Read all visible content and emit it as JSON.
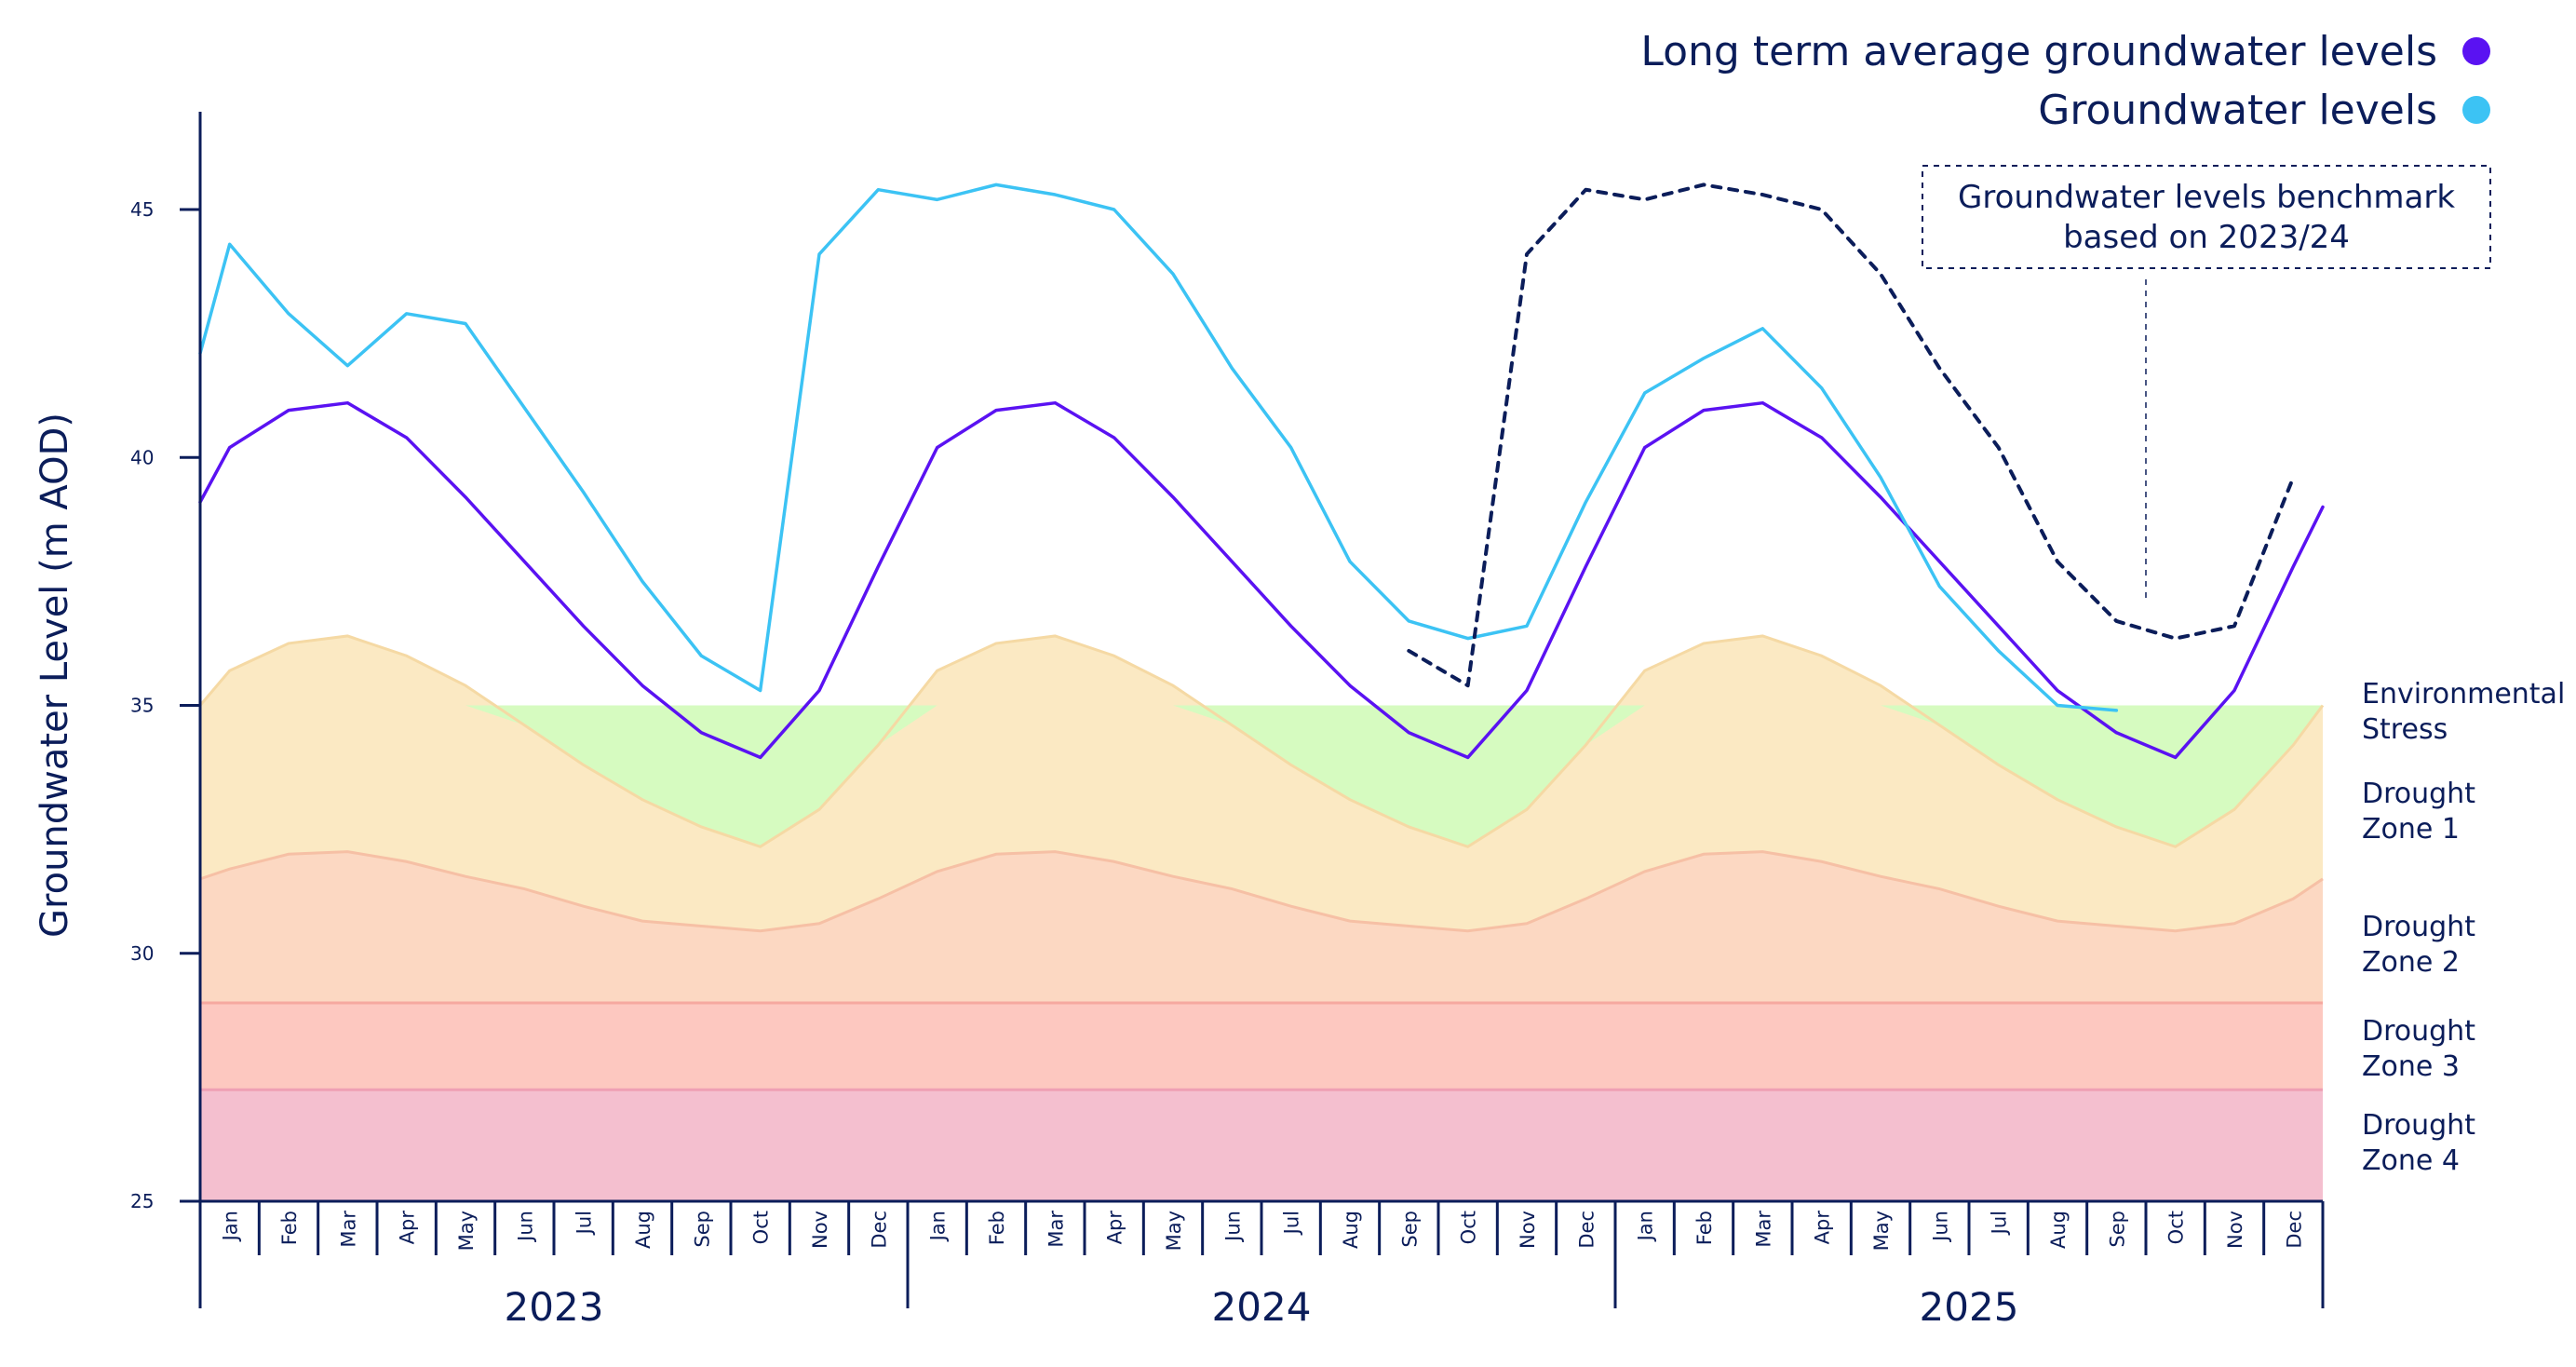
{
  "chart_data": {
    "type": "line",
    "ylabel": "Groundwater Level (m AOD)",
    "ylim": [
      25,
      47
    ],
    "yticks": [
      25,
      30,
      35,
      40,
      45
    ],
    "x_months": [
      "Jan",
      "Feb",
      "Mar",
      "Apr",
      "May",
      "Jun",
      "Jul",
      "Aug",
      "Sep",
      "Oct",
      "Nov",
      "Dec",
      "Jan",
      "Feb",
      "Mar",
      "Apr",
      "May",
      "Jun",
      "Jul",
      "Aug",
      "Sep",
      "Oct",
      "Nov",
      "Dec",
      "Jan",
      "Feb",
      "Mar",
      "Apr",
      "May",
      "Jun",
      "Jul",
      "Aug",
      "Sep",
      "Oct",
      "Nov",
      "Dec"
    ],
    "years": [
      "2023",
      "2024",
      "2025"
    ],
    "legend": [
      {
        "label": "Long term average groundwater levels",
        "color": "#5a12f2"
      },
      {
        "label": "Groundwater levels",
        "color": "#3cc3f4"
      }
    ],
    "series": [
      {
        "name": "Long term average groundwater levels",
        "color": "#5a12f2",
        "x": [
          0,
          0.5,
          1.5,
          2.5,
          3.5,
          4.5,
          5.5,
          6.5,
          7.5,
          8.5,
          9.5,
          10.5,
          11.5,
          12.5,
          13.5,
          14.5,
          15.5,
          16.5,
          17.5,
          18.5,
          19.5,
          20.5,
          21.5,
          22.5,
          23.5,
          24.5,
          25.5,
          26.5,
          27.5,
          28.5,
          29.5,
          30.5,
          31.5,
          32.5,
          33.5,
          34.5,
          35.5,
          36.0
        ],
        "y": [
          39.1,
          40.2,
          40.95,
          41.1,
          40.4,
          39.2,
          37.9,
          36.6,
          35.4,
          34.45,
          33.95,
          35.3,
          37.8,
          40.2,
          40.95,
          41.1,
          40.4,
          39.2,
          37.9,
          36.6,
          35.4,
          34.45,
          33.95,
          35.3,
          37.8,
          40.2,
          40.95,
          41.1,
          40.4,
          39.2,
          37.9,
          36.6,
          35.3,
          34.45,
          33.95,
          35.3,
          37.8,
          39.0
        ]
      },
      {
        "name": "Groundwater levels",
        "color": "#3cc3f4",
        "x": [
          0,
          0.5,
          1.5,
          2.5,
          3.5,
          4.5,
          5.5,
          6.5,
          7.5,
          8.5,
          9.5,
          10.5,
          11.5,
          12.5,
          13.5,
          14.5,
          15.5,
          16.5,
          17.5,
          18.5,
          19.5,
          20.5,
          21.5,
          22.5,
          23.5,
          24.5,
          25.5,
          26.5,
          27.5,
          28.5,
          29.5,
          30.5,
          31.5,
          32.5
        ],
        "y": [
          42.1,
          44.3,
          42.9,
          41.85,
          42.9,
          42.7,
          41.0,
          39.3,
          37.5,
          36.0,
          35.3,
          44.1,
          45.4,
          45.2,
          45.5,
          45.3,
          45.0,
          43.7,
          41.8,
          40.2,
          37.9,
          36.7,
          36.35,
          36.6,
          39.1,
          41.3,
          42.0,
          42.6,
          41.4,
          39.6,
          37.4,
          36.1,
          35.0,
          34.9
        ]
      },
      {
        "name": "Groundwater levels benchmark",
        "color": "#0b1d5a",
        "dashed": true,
        "x": [
          20.5,
          21.5,
          22.5,
          23.5,
          24.5,
          25.5,
          26.5,
          27.5,
          28.5,
          29.5,
          30.5,
          31.5,
          32.5,
          33.5,
          34.5,
          35.5
        ],
        "y": [
          36.1,
          35.4,
          44.1,
          45.4,
          45.2,
          45.5,
          45.3,
          45.0,
          43.7,
          41.8,
          40.2,
          37.9,
          36.7,
          36.35,
          36.6,
          39.6
        ]
      }
    ],
    "zones": [
      {
        "label_lines": [
          "Environmental",
          "Stress"
        ],
        "color": "#d6fbc0",
        "edge": "#b8ee9c"
      },
      {
        "label_lines": [
          "Drought",
          "Zone 1"
        ],
        "color": "#fbe9c3",
        "edge": "#f5d9a4"
      },
      {
        "label_lines": [
          "Drought",
          "Zone 2"
        ],
        "color": "#fcd8c2",
        "edge": "#f6c0a5"
      },
      {
        "label_lines": [
          "Drought",
          "Zone 3"
        ],
        "color": "#fdc8c0",
        "edge": "#f6a9a0"
      },
      {
        "label_lines": [
          "Drought",
          "Zone 4"
        ],
        "color": "#f4bfcf",
        "edge": "#ef9fb4"
      }
    ],
    "zone_boundaries": {
      "environmental_stress_top": 35.0,
      "zone1_top_x": [
        0,
        0.5,
        1.5,
        2.5,
        3.5,
        4.5,
        5.5,
        6.5,
        7.5,
        8.5,
        9.5,
        10.5,
        11.5,
        12.5,
        13.5,
        14.5,
        15.5,
        16.5,
        17.5,
        18.5,
        19.5,
        20.5,
        21.5,
        22.5,
        23.5,
        24.5,
        25.5,
        26.5,
        27.5,
        28.5,
        29.5,
        30.5,
        31.5,
        32.5,
        33.5,
        34.5,
        35.5,
        36.0
      ],
      "zone1_top_y": [
        35.0,
        35.7,
        36.25,
        36.4,
        36.0,
        35.4,
        34.6,
        33.8,
        33.1,
        32.55,
        32.15,
        32.9,
        34.2,
        35.7,
        36.25,
        36.4,
        36.0,
        35.4,
        34.6,
        33.8,
        33.1,
        32.55,
        32.15,
        32.9,
        34.2,
        35.7,
        36.25,
        36.4,
        36.0,
        35.4,
        34.6,
        33.8,
        33.1,
        32.55,
        32.15,
        32.9,
        34.2,
        35.0
      ],
      "zone2_top_x": [
        0,
        0.5,
        1.5,
        2.5,
        3.5,
        4.5,
        5.5,
        6.5,
        7.5,
        8.5,
        9.5,
        10.5,
        11.5,
        12.5,
        13.5,
        14.5,
        15.5,
        16.5,
        17.5,
        18.5,
        19.5,
        20.5,
        21.5,
        22.5,
        23.5,
        24.5,
        25.5,
        26.5,
        27.5,
        28.5,
        29.5,
        30.5,
        31.5,
        32.5,
        33.5,
        34.5,
        35.5,
        36.0
      ],
      "zone2_top_y": [
        31.5,
        31.7,
        32.0,
        32.05,
        31.85,
        31.55,
        31.3,
        30.95,
        30.65,
        30.55,
        30.45,
        30.6,
        31.1,
        31.65,
        32.0,
        32.05,
        31.85,
        31.55,
        31.3,
        30.95,
        30.65,
        30.55,
        30.45,
        30.6,
        31.1,
        31.65,
        32.0,
        32.05,
        31.85,
        31.55,
        31.3,
        30.95,
        30.65,
        30.55,
        30.45,
        30.6,
        31.1,
        31.5
      ],
      "zone3_top": 29.0,
      "zone4_top": 27.25
    },
    "annotation": {
      "lines": [
        "Groundwater levels benchmark",
        "based on 2023/24"
      ],
      "x": 33.0,
      "y": 36.6
    }
  }
}
